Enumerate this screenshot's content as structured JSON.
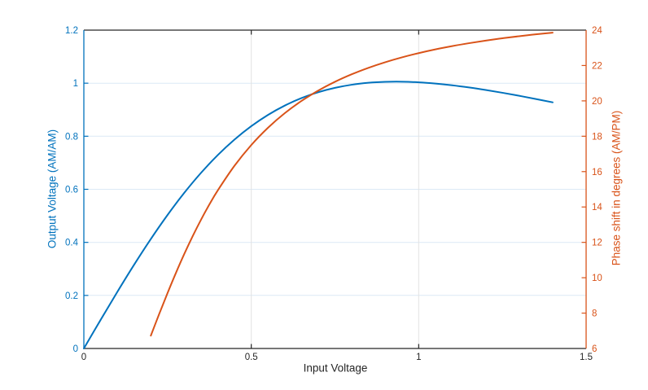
{
  "chart_data": {
    "type": "line",
    "title": "",
    "xlabel": "Input Voltage",
    "ylabel_left": "Output Voltage (AM/AM)",
    "ylabel_right": "Phase shift in degrees (AM/PM)",
    "xlim": [
      0,
      1.5
    ],
    "ylim_left": [
      0,
      1.2
    ],
    "ylim_right": [
      6,
      24
    ],
    "xticks": [
      0,
      0.5,
      1,
      1.5
    ],
    "xtick_labels": [
      "0",
      "0.5",
      "1",
      "1.5"
    ],
    "yticks_left": [
      0,
      0.2,
      0.4,
      0.6,
      0.8,
      1,
      1.2
    ],
    "ytick_labels_left": [
      "0",
      "0.2",
      "0.4",
      "0.6",
      "0.8",
      "1",
      "1.2"
    ],
    "yticks_right": [
      6,
      8,
      10,
      12,
      14,
      16,
      18,
      20,
      22,
      24
    ],
    "ytick_labels_right": [
      "6",
      "8",
      "10",
      "12",
      "14",
      "16",
      "18",
      "20",
      "22",
      "24"
    ],
    "grid": {
      "horizontal": true,
      "vertical": true
    },
    "colors": {
      "left_axis": "#0072BD",
      "right_axis": "#D95319",
      "dark_axis": "#262626",
      "grid_horizontal": "#DCE9F6",
      "grid_vertical": "#E2E2E2",
      "background": "#FFFFFF"
    },
    "series": [
      {
        "name": "AM/AM output voltage",
        "axis": "left",
        "color": "#0072BD",
        "x": [
          0,
          0.05,
          0.1,
          0.15,
          0.2,
          0.25,
          0.3,
          0.35,
          0.4,
          0.45,
          0.5,
          0.55,
          0.6,
          0.65,
          0.7,
          0.75,
          0.8,
          0.85,
          0.9,
          0.95,
          1,
          1.05,
          1.1,
          1.15,
          1.2,
          1.25,
          1.3,
          1.35,
          1.4
        ],
        "y": [
          0,
          0.1076,
          0.2134,
          0.3156,
          0.4127,
          0.5034,
          0.5868,
          0.6621,
          0.7291,
          0.7877,
          0.838,
          0.8805,
          0.9156,
          0.9439,
          0.966,
          0.9825,
          0.9942,
          1.0015,
          1.0051,
          1.0056,
          1.0033,
          0.9986,
          0.9921,
          0.9839,
          0.9744,
          0.9639,
          0.9525,
          0.9404,
          0.9278
        ]
      },
      {
        "name": "AM/PM phase shift",
        "axis": "right",
        "color": "#D95319",
        "x": [
          0.2,
          0.225,
          0.25,
          0.275,
          0.3,
          0.325,
          0.35,
          0.375,
          0.4,
          0.45,
          0.5,
          0.55,
          0.6,
          0.65,
          0.7,
          0.75,
          0.8,
          0.85,
          0.9,
          0.95,
          1,
          1.05,
          1.1,
          1.15,
          1.2,
          1.25,
          1.3,
          1.35,
          1.4
        ],
        "y": [
          6.726,
          7.949,
          9.137,
          10.273,
          11.347,
          12.351,
          13.284,
          14.146,
          14.939,
          16.334,
          17.504,
          18.483,
          19.305,
          19.996,
          20.581,
          21.079,
          21.504,
          21.87,
          22.186,
          22.461,
          22.701,
          22.913,
          23.098,
          23.261,
          23.409,
          23.54,
          23.656,
          23.763,
          23.858
        ]
      }
    ]
  }
}
